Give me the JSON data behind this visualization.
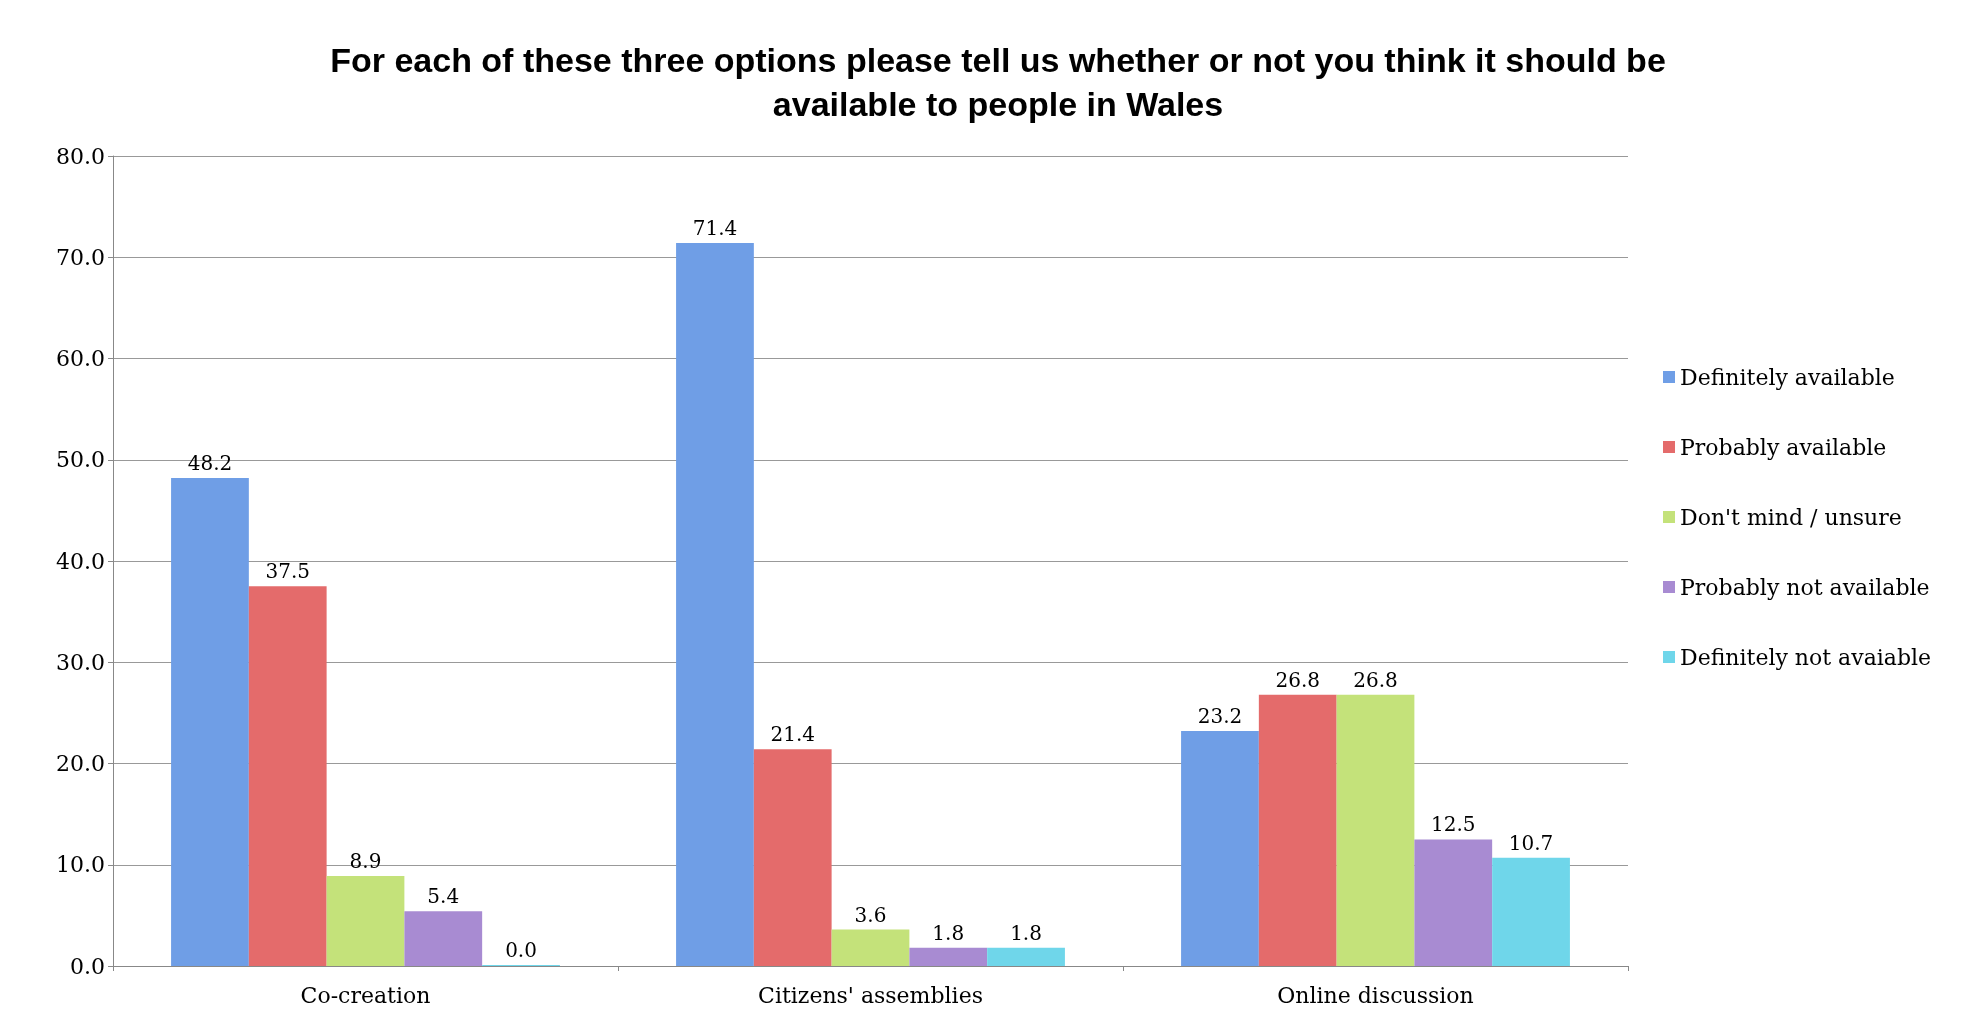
{
  "chart_data": {
    "type": "bar",
    "title": "For each of these three options please tell us whether or not you think it should be\navailable to people in Wales",
    "categories": [
      "Co-creation",
      "Citizens' assemblies",
      "Online discussion"
    ],
    "series": [
      {
        "name": "Definitely available",
        "color": "#6f9ee6",
        "values": [
          48.2,
          71.4,
          23.2
        ],
        "value_labels": [
          "48.2",
          "71.4",
          "23.2"
        ]
      },
      {
        "name": "Probably available",
        "color": "#e46b6b",
        "values": [
          37.5,
          21.4,
          26.8
        ],
        "value_labels": [
          "37.5",
          "21.4",
          "26.8"
        ]
      },
      {
        "name": "Don't mind / unsure",
        "color": "#c4e27a",
        "values": [
          8.9,
          3.6,
          26.8
        ],
        "value_labels": [
          "8.9",
          "3.6",
          "26.8"
        ]
      },
      {
        "name": "Probably not available",
        "color": "#a88bd2",
        "values": [
          5.4,
          1.8,
          12.5
        ],
        "value_labels": [
          "5.4",
          "1.8",
          "12.5"
        ]
      },
      {
        "name": "Definitely not avaiable",
        "color": "#6fd6ea",
        "values": [
          0,
          1.8,
          10.7
        ],
        "value_labels": [
          "0.0",
          "1.8",
          "10.7"
        ]
      }
    ],
    "ylim": [
      0,
      80
    ],
    "yticks": [
      {
        "value": 0,
        "label": "0.0"
      },
      {
        "value": 10,
        "label": "10.0"
      },
      {
        "value": 20,
        "label": "20.0"
      },
      {
        "value": 30,
        "label": "30.0"
      },
      {
        "value": 40,
        "label": "40.0"
      },
      {
        "value": 50,
        "label": "50.0"
      },
      {
        "value": 60,
        "label": "60.0"
      },
      {
        "value": 70,
        "label": "70.0"
      },
      {
        "value": 80,
        "label": "80.0"
      }
    ],
    "grid": "y",
    "legend": "right"
  }
}
